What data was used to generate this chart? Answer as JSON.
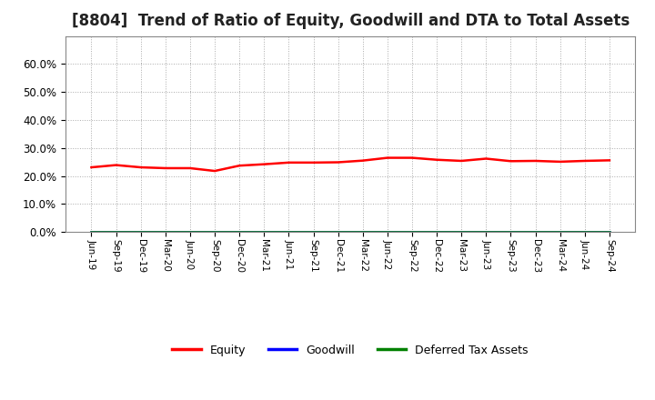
{
  "title": "[8804]  Trend of Ratio of Equity, Goodwill and DTA to Total Assets",
  "title_fontsize": 12,
  "background_color": "#ffffff",
  "plot_background_color": "#ffffff",
  "grid_color": "#aaaaaa",
  "ylim": [
    0.0,
    0.7
  ],
  "yticks": [
    0.0,
    0.1,
    0.2,
    0.3,
    0.4,
    0.5,
    0.6
  ],
  "x_labels": [
    "Jun-19",
    "Sep-19",
    "Dec-19",
    "Mar-20",
    "Jun-20",
    "Sep-20",
    "Dec-20",
    "Mar-21",
    "Jun-21",
    "Sep-21",
    "Dec-21",
    "Mar-22",
    "Jun-22",
    "Sep-22",
    "Dec-22",
    "Mar-23",
    "Jun-23",
    "Sep-23",
    "Dec-23",
    "Mar-24",
    "Jun-24",
    "Sep-24"
  ],
  "equity": [
    0.231,
    0.239,
    0.231,
    0.228,
    0.228,
    0.218,
    0.237,
    0.242,
    0.248,
    0.248,
    0.249,
    0.255,
    0.265,
    0.265,
    0.258,
    0.254,
    0.262,
    0.253,
    0.254,
    0.251,
    0.254,
    0.256
  ],
  "goodwill": [
    0.0,
    0.0,
    0.0,
    0.0,
    0.0,
    0.0,
    0.0,
    0.0,
    0.0,
    0.0,
    0.0,
    0.0,
    0.0,
    0.0,
    0.0,
    0.0,
    0.0,
    0.0,
    0.0,
    0.0,
    0.0,
    0.0
  ],
  "dta": [
    0.002,
    0.002,
    0.002,
    0.002,
    0.002,
    0.002,
    0.002,
    0.002,
    0.002,
    0.002,
    0.002,
    0.002,
    0.002,
    0.002,
    0.002,
    0.002,
    0.002,
    0.002,
    0.002,
    0.002,
    0.002,
    0.002
  ],
  "equity_color": "#ff0000",
  "goodwill_color": "#0000ff",
  "dta_color": "#008000",
  "line_width": 1.8,
  "legend_labels": [
    "Equity",
    "Goodwill",
    "Deferred Tax Assets"
  ],
  "legend_colors": [
    "#ff0000",
    "#0000ff",
    "#008000"
  ]
}
